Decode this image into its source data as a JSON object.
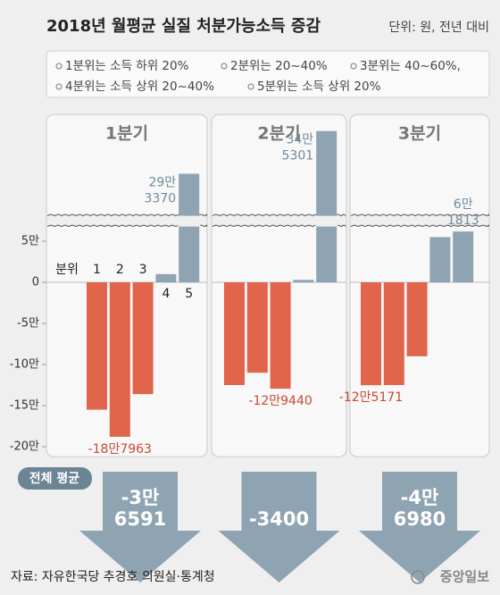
{
  "chart_data": {
    "type": "bar",
    "title": "2018년 월평균 실질 처분가능소득 증감",
    "unit": "단위: 원, 전년 대비",
    "legend_notes": [
      "1분위는 소득 하위 20%",
      "2분위는 20~40%",
      "3분위는 40~60%,",
      "4분위는 소득 상위 20~40%",
      "5분위는 소득 상위 20%"
    ],
    "category_title": "분위",
    "categories": [
      "1",
      "2",
      "3",
      "4",
      "5"
    ],
    "ylim": [
      -210000,
      360000
    ],
    "axis_break": [
      70000,
      240000
    ],
    "yticks": [
      {
        "value": 50000,
        "label": "5만"
      },
      0,
      {
        "value": -50000,
        "label": "-5만"
      },
      {
        "value": -100000,
        "label": "-10만"
      },
      {
        "value": -150000,
        "label": "-15만"
      },
      {
        "value": -200000,
        "label": "-20만"
      }
    ],
    "panels": [
      {
        "title": "1분기",
        "values": [
          -155000,
          -187963,
          -136000,
          10000,
          293370
        ],
        "value_labels": [
          null,
          "-18만7963",
          null,
          null,
          "29만\n3370"
        ],
        "colors": [
          "#e0654b",
          "#e0654b",
          "#e0654b",
          "#8fa4b2",
          "#8fa4b2"
        ]
      },
      {
        "title": "2분기",
        "values": [
          -125000,
          -110000,
          -129440,
          3000,
          345301
        ],
        "value_labels": [
          null,
          null,
          "-12만9440",
          null,
          "34만\n5301"
        ],
        "colors": [
          "#e0654b",
          "#e0654b",
          "#e0654b",
          "#8fa4b2",
          "#8fa4b2"
        ]
      },
      {
        "title": "3분기",
        "values": [
          -125171,
          -125000,
          -90000,
          55000,
          61813
        ],
        "value_labels": [
          "-12만5171",
          null,
          null,
          null,
          "6만\n1813"
        ],
        "colors": [
          "#e0654b",
          "#e0654b",
          "#e0654b",
          "#8fa4b2",
          "#8fa4b2"
        ]
      }
    ],
    "averages": {
      "label": "전체 평균",
      "values": [
        -36591,
        -3400,
        -46980
      ],
      "value_labels": [
        "-3만\n6591",
        "-3400",
        "-4만\n6980"
      ],
      "color": "#8fa4b2"
    },
    "source": "자료: 자유한국당 추경호 의원실·통계청",
    "publisher": "중앙일보"
  }
}
